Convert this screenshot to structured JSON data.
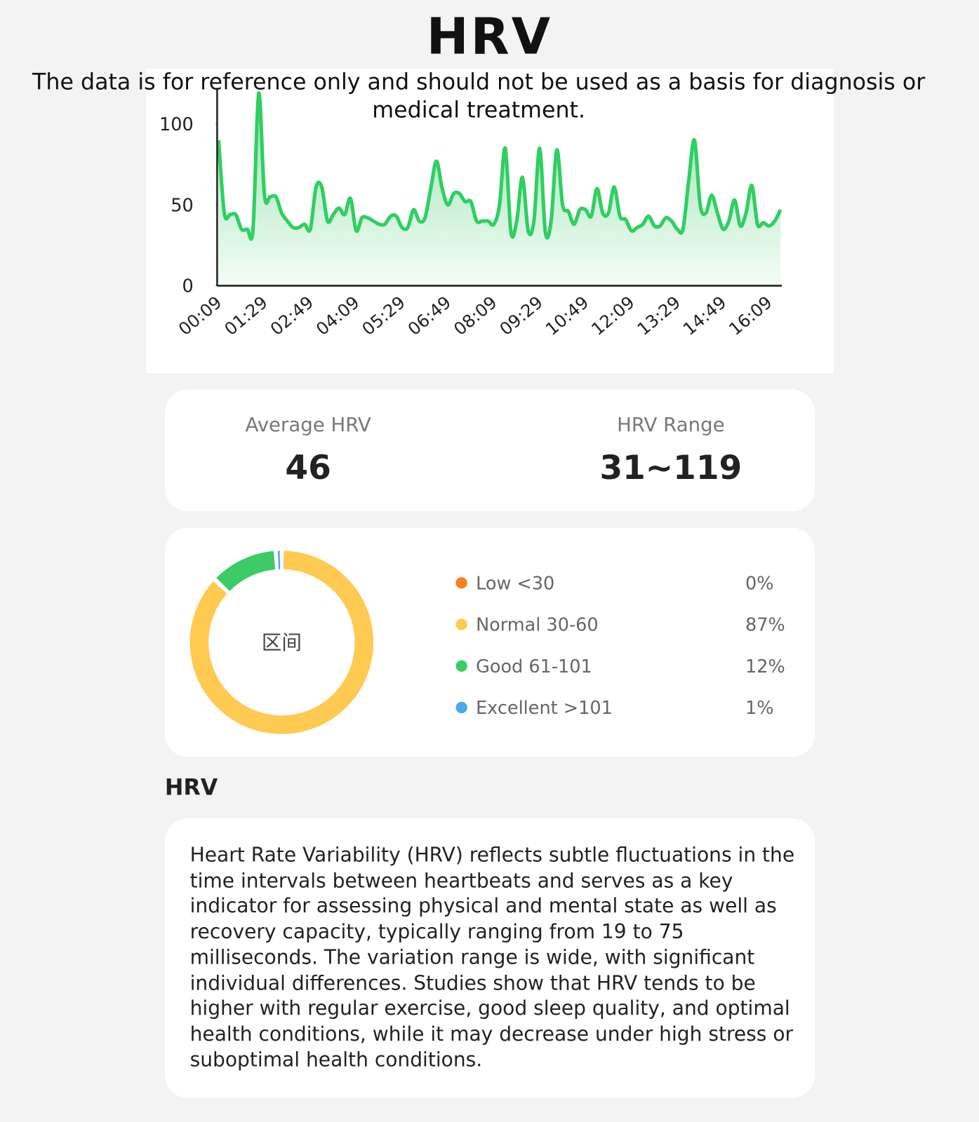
{
  "header": {
    "title": "HRV",
    "disclaimer": "The data is for reference only and should not be used as a basis for diagnosis or medical treatment."
  },
  "chart_data": [
    {
      "type": "line",
      "color": "#2fcf62",
      "categories": [
        "00:09",
        null,
        null,
        null,
        null,
        null,
        null,
        null,
        "01:29",
        null,
        null,
        null,
        null,
        null,
        null,
        null,
        "02:49",
        null,
        null,
        null,
        null,
        null,
        null,
        null,
        "04:09",
        null,
        null,
        null,
        null,
        null,
        null,
        null,
        "05:29",
        null,
        null,
        null,
        null,
        null,
        null,
        null,
        "06:49",
        null,
        null,
        null,
        null,
        null,
        null,
        null,
        "08:09",
        null,
        null,
        null,
        null,
        null,
        null,
        null,
        "09:29",
        null,
        null,
        null,
        null,
        null,
        null,
        null,
        "10:49",
        null,
        null,
        null,
        null,
        null,
        null,
        null,
        "12:09",
        null,
        null,
        null,
        null,
        null,
        null,
        null,
        "13:29",
        null,
        null,
        null,
        null,
        null,
        null,
        null,
        "14:49",
        null,
        null,
        null,
        null,
        null,
        null,
        null,
        "16:09",
        null,
        null
      ],
      "values": [
        90,
        45,
        44,
        44,
        35,
        35,
        35,
        119,
        56,
        55,
        55,
        45,
        40,
        36,
        36,
        38,
        35,
        61,
        61,
        40,
        44,
        48,
        44,
        54,
        34,
        42,
        42,
        40,
        38,
        38,
        43,
        43,
        36,
        36,
        47,
        40,
        42,
        60,
        77,
        60,
        50,
        57,
        57,
        52,
        52,
        40,
        40,
        40,
        38,
        50,
        85,
        33,
        40,
        67,
        34,
        40,
        85,
        33,
        40,
        84,
        50,
        46,
        38,
        47,
        47,
        43,
        60,
        45,
        45,
        61,
        43,
        41,
        34,
        36,
        38,
        43,
        37,
        37,
        42,
        40,
        35,
        35,
        65,
        90,
        50,
        45,
        56,
        45,
        35,
        40,
        53,
        37,
        45,
        62,
        38,
        39,
        37,
        40,
        47
      ],
      "ylim": [
        0,
        120
      ],
      "yticks": [
        0,
        50,
        100
      ]
    },
    {
      "type": "donut",
      "center_label": "区间",
      "categories": [
        "Low <30",
        "Normal 30-60",
        "Good 61-101",
        "Excellent >101"
      ],
      "values": [
        0,
        87,
        12,
        1
      ],
      "value_labels": [
        "0%",
        "87%",
        "12%",
        "1%"
      ],
      "colors": [
        "#f5821f",
        "#ffca52",
        "#3ccb66",
        "#4aa9ee"
      ]
    }
  ],
  "stats": [
    {
      "label": "Average HRV",
      "value": "46"
    },
    {
      "label": "HRV Range",
      "value": "31~119"
    }
  ],
  "section": {
    "title": "HRV",
    "text": "Heart Rate Variability (HRV) reflects subtle fluctuations in the time intervals between heartbeats and serves as a key indicator for assessing physical and mental state as well as recovery capacity, typically ranging from 19 to 75 milliseconds. The variation range is wide, with significant individual differences. Studies show that HRV tends to be higher with regular exercise, good sleep quality, and optimal health conditions, while it may decrease under high stress or suboptimal health conditions."
  }
}
